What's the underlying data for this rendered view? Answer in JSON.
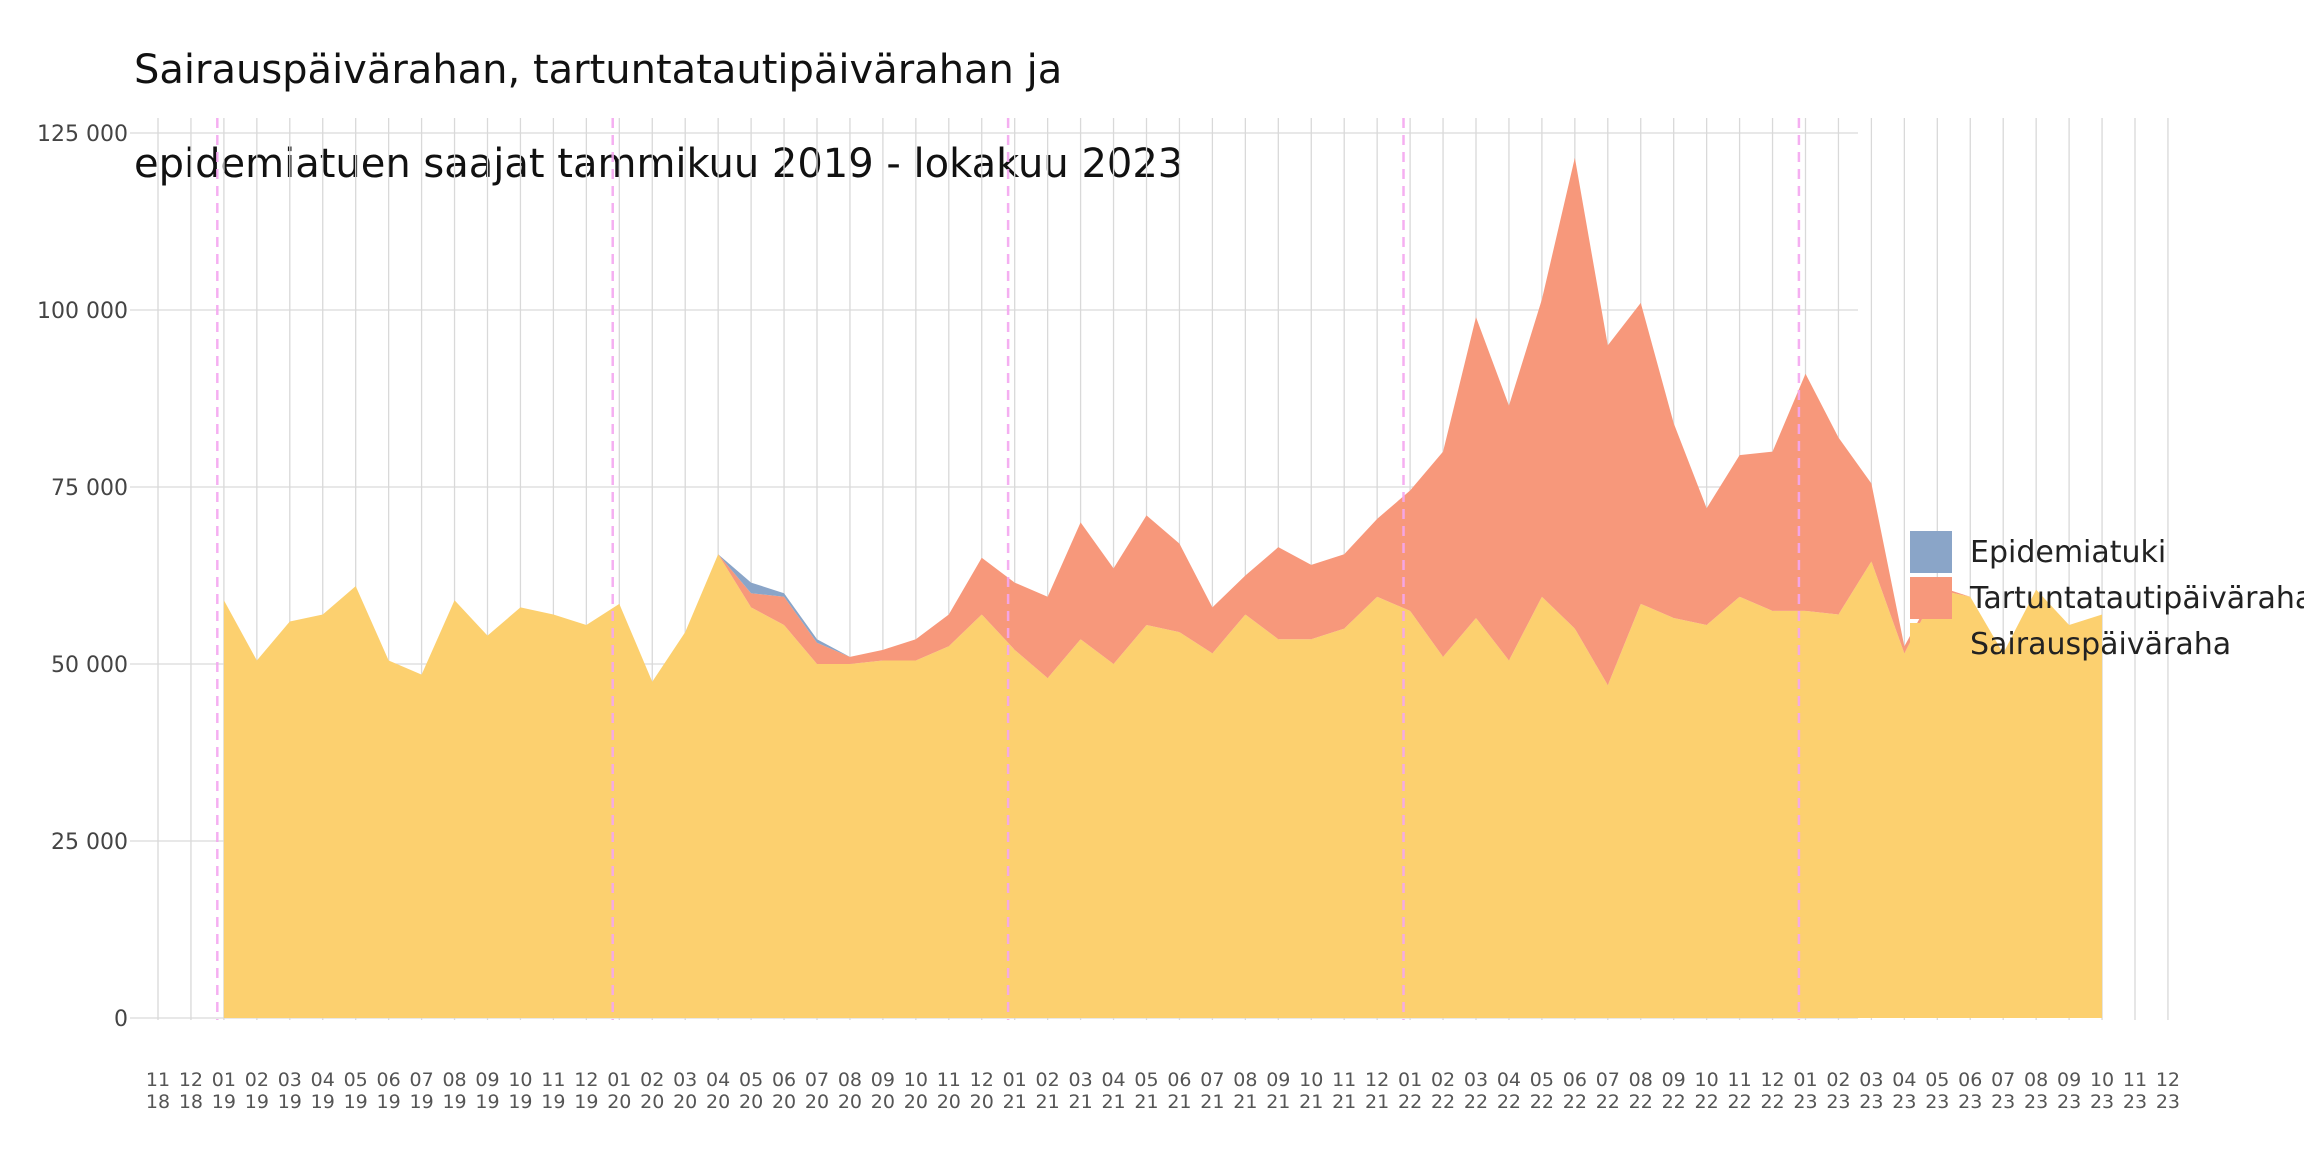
{
  "title_lines": [
    "Sairauspäivärahan, tartuntatautipäivärahan ja",
    "epidemiatuen saajat tammikuu 2019 - lokakuu 2023"
  ],
  "chart_data": {
    "type": "area",
    "stacked": true,
    "x_tick_labels": [
      {
        "month": "11",
        "year": "18"
      },
      {
        "month": "12",
        "year": "18"
      },
      {
        "month": "01",
        "year": "19"
      },
      {
        "month": "02",
        "year": "19"
      },
      {
        "month": "03",
        "year": "19"
      },
      {
        "month": "04",
        "year": "19"
      },
      {
        "month": "05",
        "year": "19"
      },
      {
        "month": "06",
        "year": "19"
      },
      {
        "month": "07",
        "year": "19"
      },
      {
        "month": "08",
        "year": "19"
      },
      {
        "month": "09",
        "year": "19"
      },
      {
        "month": "10",
        "year": "19"
      },
      {
        "month": "11",
        "year": "19"
      },
      {
        "month": "12",
        "year": "19"
      },
      {
        "month": "01",
        "year": "20"
      },
      {
        "month": "02",
        "year": "20"
      },
      {
        "month": "03",
        "year": "20"
      },
      {
        "month": "04",
        "year": "20"
      },
      {
        "month": "05",
        "year": "20"
      },
      {
        "month": "06",
        "year": "20"
      },
      {
        "month": "07",
        "year": "20"
      },
      {
        "month": "08",
        "year": "20"
      },
      {
        "month": "09",
        "year": "20"
      },
      {
        "month": "10",
        "year": "20"
      },
      {
        "month": "11",
        "year": "20"
      },
      {
        "month": "12",
        "year": "20"
      },
      {
        "month": "01",
        "year": "21"
      },
      {
        "month": "02",
        "year": "21"
      },
      {
        "month": "03",
        "year": "21"
      },
      {
        "month": "04",
        "year": "21"
      },
      {
        "month": "05",
        "year": "21"
      },
      {
        "month": "06",
        "year": "21"
      },
      {
        "month": "07",
        "year": "21"
      },
      {
        "month": "08",
        "year": "21"
      },
      {
        "month": "09",
        "year": "21"
      },
      {
        "month": "10",
        "year": "21"
      },
      {
        "month": "11",
        "year": "21"
      },
      {
        "month": "12",
        "year": "21"
      },
      {
        "month": "01",
        "year": "22"
      },
      {
        "month": "02",
        "year": "22"
      },
      {
        "month": "03",
        "year": "22"
      },
      {
        "month": "04",
        "year": "22"
      },
      {
        "month": "05",
        "year": "22"
      },
      {
        "month": "06",
        "year": "22"
      },
      {
        "month": "07",
        "year": "22"
      },
      {
        "month": "08",
        "year": "22"
      },
      {
        "month": "09",
        "year": "22"
      },
      {
        "month": "10",
        "year": "22"
      },
      {
        "month": "11",
        "year": "22"
      },
      {
        "month": "12",
        "year": "22"
      },
      {
        "month": "01",
        "year": "23"
      },
      {
        "month": "02",
        "year": "23"
      },
      {
        "month": "03",
        "year": "23"
      },
      {
        "month": "04",
        "year": "23"
      },
      {
        "month": "05",
        "year": "23"
      },
      {
        "month": "06",
        "year": "23"
      },
      {
        "month": "07",
        "year": "23"
      },
      {
        "month": "08",
        "year": "23"
      },
      {
        "month": "09",
        "year": "23"
      },
      {
        "month": "10",
        "year": "23"
      },
      {
        "month": "11",
        "year": "23"
      },
      {
        "month": "12",
        "year": "23"
      }
    ],
    "x": [
      "2019-01",
      "2019-02",
      "2019-03",
      "2019-04",
      "2019-05",
      "2019-06",
      "2019-07",
      "2019-08",
      "2019-09",
      "2019-10",
      "2019-11",
      "2019-12",
      "2020-01",
      "2020-02",
      "2020-03",
      "2020-04",
      "2020-05",
      "2020-06",
      "2020-07",
      "2020-08",
      "2020-09",
      "2020-10",
      "2020-11",
      "2020-12",
      "2021-01",
      "2021-02",
      "2021-03",
      "2021-04",
      "2021-05",
      "2021-06",
      "2021-07",
      "2021-08",
      "2021-09",
      "2021-10",
      "2021-11",
      "2021-12",
      "2022-01",
      "2022-02",
      "2022-03",
      "2022-04",
      "2022-05",
      "2022-06",
      "2022-07",
      "2022-08",
      "2022-09",
      "2022-10",
      "2022-11",
      "2022-12",
      "2023-01",
      "2023-02",
      "2023-03",
      "2023-04",
      "2023-05",
      "2023-06",
      "2023-07",
      "2023-08",
      "2023-09",
      "2023-10"
    ],
    "series": [
      {
        "name": "Sairauspäiväraha",
        "color": "#fcd06f",
        "values": [
          59000,
          50500,
          56000,
          57000,
          61000,
          50500,
          48500,
          59000,
          54000,
          58000,
          57000,
          55500,
          58500,
          47500,
          54500,
          65500,
          58000,
          55500,
          50000,
          50000,
          50500,
          50500,
          52500,
          57000,
          52000,
          48000,
          53500,
          50000,
          55500,
          54500,
          51500,
          57000,
          53500,
          53500,
          55000,
          59500,
          57500,
          51000,
          56500,
          50500,
          59500,
          55000,
          47000,
          58500,
          56500,
          55500,
          59500,
          57500,
          57500,
          57000,
          64500,
          51500,
          60500,
          59500,
          51500,
          60500,
          55500,
          57000
        ]
      },
      {
        "name": "Tartuntatautipäiväraha",
        "color": "#f7987b",
        "values": [
          0,
          0,
          0,
          0,
          0,
          0,
          0,
          0,
          0,
          0,
          0,
          0,
          0,
          0,
          0,
          0,
          2000,
          4000,
          3000,
          1000,
          1500,
          3000,
          4500,
          8000,
          9500,
          11500,
          16500,
          13500,
          15500,
          12500,
          6500,
          5500,
          13000,
          10500,
          10500,
          11000,
          17000,
          29000,
          42500,
          36000,
          42000,
          66500,
          48000,
          42500,
          27500,
          16500,
          20000,
          22500,
          33500,
          25000,
          11000,
          1000,
          500,
          0,
          0,
          0,
          0,
          0
        ]
      },
      {
        "name": "Epidemiatuki",
        "color": "#8aa5c8",
        "values": [
          0,
          0,
          0,
          0,
          0,
          0,
          0,
          0,
          0,
          0,
          0,
          0,
          0,
          0,
          0,
          0,
          1500,
          500,
          500,
          0,
          0,
          0,
          0,
          0,
          0,
          0,
          0,
          0,
          0,
          0,
          0,
          0,
          0,
          0,
          0,
          0,
          0,
          0,
          0,
          0,
          0,
          0,
          0,
          0,
          0,
          0,
          0,
          0,
          0,
          0,
          0,
          0,
          0,
          0,
          0,
          0,
          0,
          0
        ]
      }
    ],
    "ylim": [
      0,
      125000
    ],
    "y_ticks": [
      0,
      25000,
      50000,
      75000,
      100000,
      125000
    ],
    "y_tick_labels": [
      "0",
      "25 000",
      "50 000",
      "75 000",
      "100 000",
      "125 000"
    ],
    "year_boundary_markers": [
      "2018-12",
      "2019-12",
      "2020-12",
      "2021-12",
      "2022-12"
    ],
    "marker_color": "#f4a6f0",
    "grid": true,
    "legend_position": "right",
    "legend_order": [
      "Epidemiatuki",
      "Tartuntatautipäiväraha",
      "Sairauspäiväraha"
    ]
  }
}
